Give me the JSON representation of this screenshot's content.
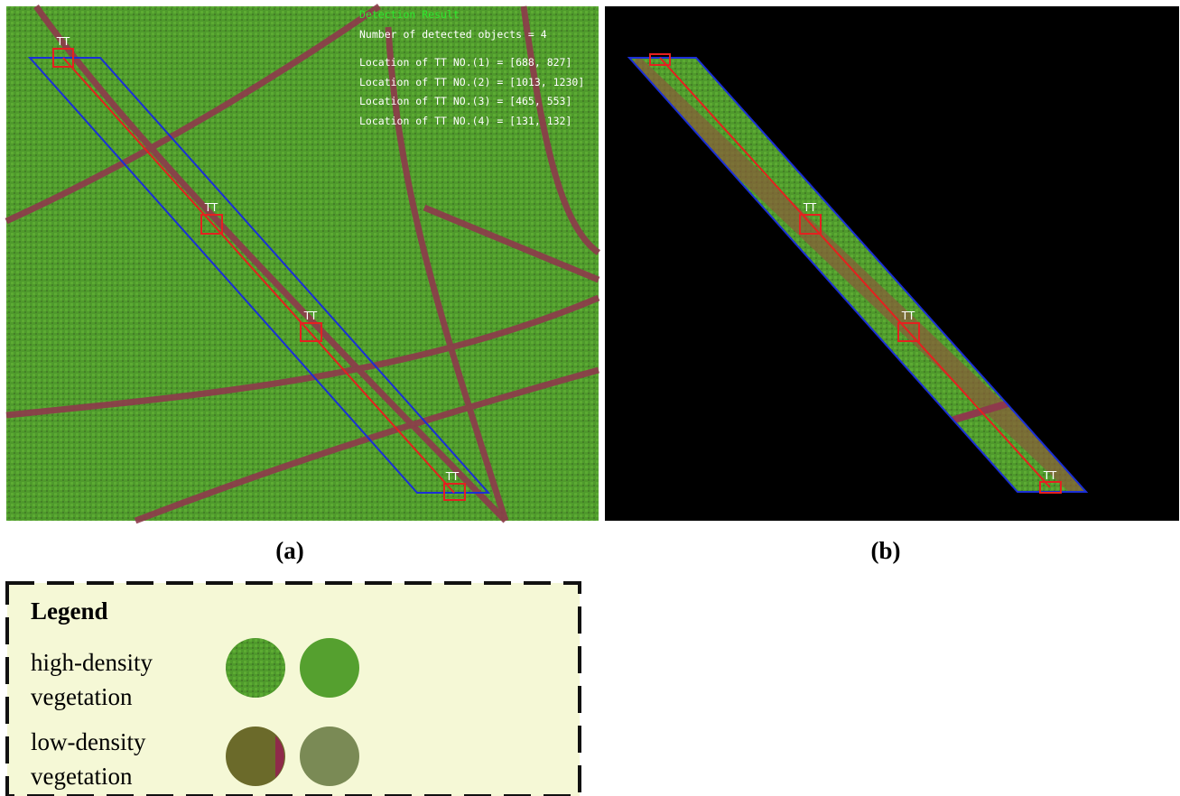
{
  "panel_a": {
    "overlay": {
      "title": "Detection Result",
      "count": "Number of detected objects = 4",
      "locations": [
        "Location of TT NO.(1) = [688, 827]",
        "Location of TT NO.(2) = [1013, 1230]",
        "Location of TT NO.(3) = [465, 553]",
        "Location of TT NO.(4) = [131, 132]"
      ]
    },
    "markers": [
      "TT",
      "TT",
      "TT",
      "TT"
    ],
    "caption": "(a)"
  },
  "panel_b": {
    "markers": [
      "TT",
      "TT",
      "TT"
    ],
    "caption": "(b)"
  },
  "legend": {
    "title": "Legend",
    "items": [
      {
        "lines": [
          "high-density",
          "vegetation"
        ]
      },
      {
        "lines": [
          "low-density",
          "vegetation"
        ]
      }
    ]
  }
}
